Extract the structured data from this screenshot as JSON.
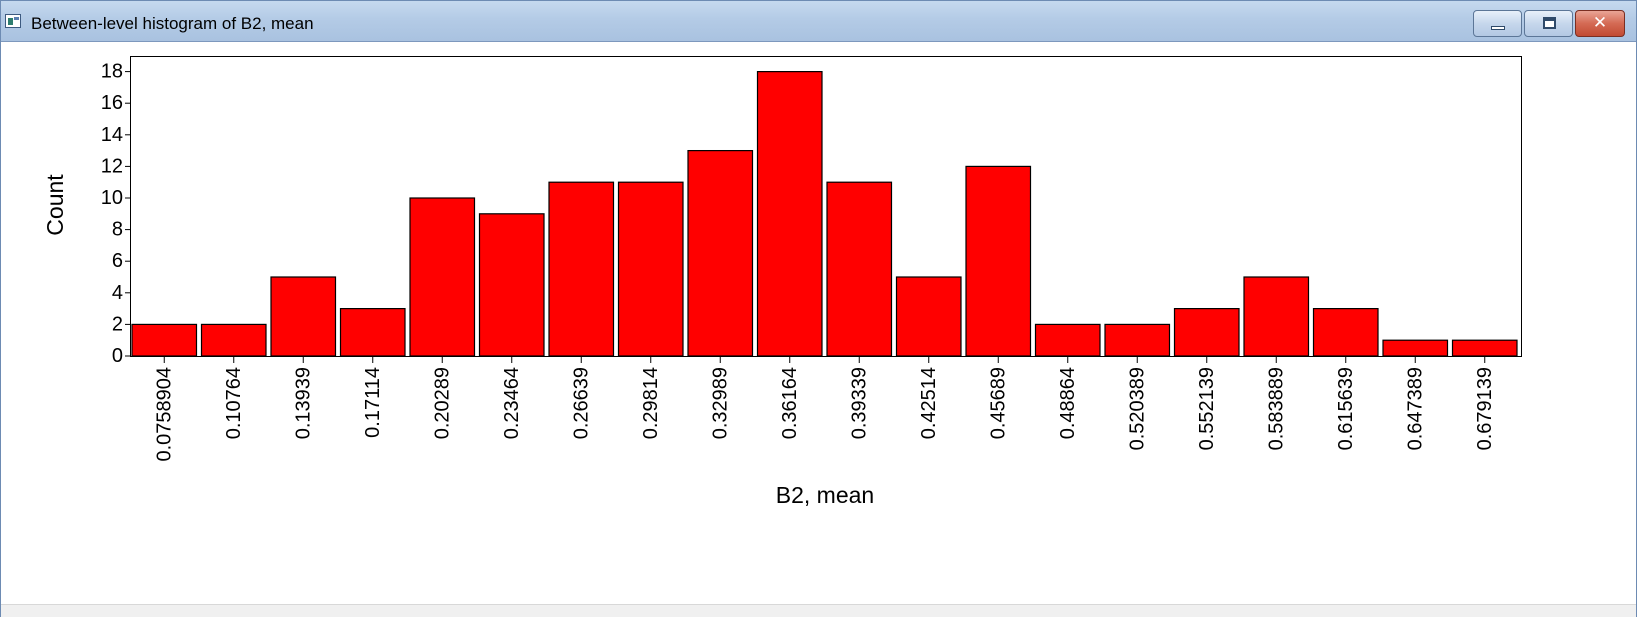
{
  "window": {
    "title": "Between-level histogram of B2, mean",
    "icons": {
      "app": "app-icon",
      "minimize": "minimize-icon",
      "maximize": "maximize-icon",
      "close": "close-icon"
    }
  },
  "colors": {
    "bar_fill": "#ff0000",
    "bar_stroke": "#000000",
    "axis": "#000000"
  },
  "chart_data": {
    "type": "bar",
    "title": "",
    "xlabel": "B2, mean",
    "ylabel": "Count",
    "ylim": [
      0,
      19
    ],
    "yticks": [
      0,
      2,
      4,
      6,
      8,
      10,
      12,
      14,
      16,
      18
    ],
    "grid": false,
    "legend": "none",
    "categories": [
      "0.0758904",
      "0.10764",
      "0.13939",
      "0.17114",
      "0.20289",
      "0.23464",
      "0.26639",
      "0.29814",
      "0.32989",
      "0.36164",
      "0.39339",
      "0.42514",
      "0.45689",
      "0.48864",
      "0.520389",
      "0.552139",
      "0.583889",
      "0.615639",
      "0.647389",
      "0.679139"
    ],
    "values": [
      2,
      2,
      5,
      3,
      10,
      9,
      11,
      11,
      13,
      18,
      11,
      5,
      12,
      2,
      2,
      3,
      5,
      3,
      1,
      1
    ]
  }
}
